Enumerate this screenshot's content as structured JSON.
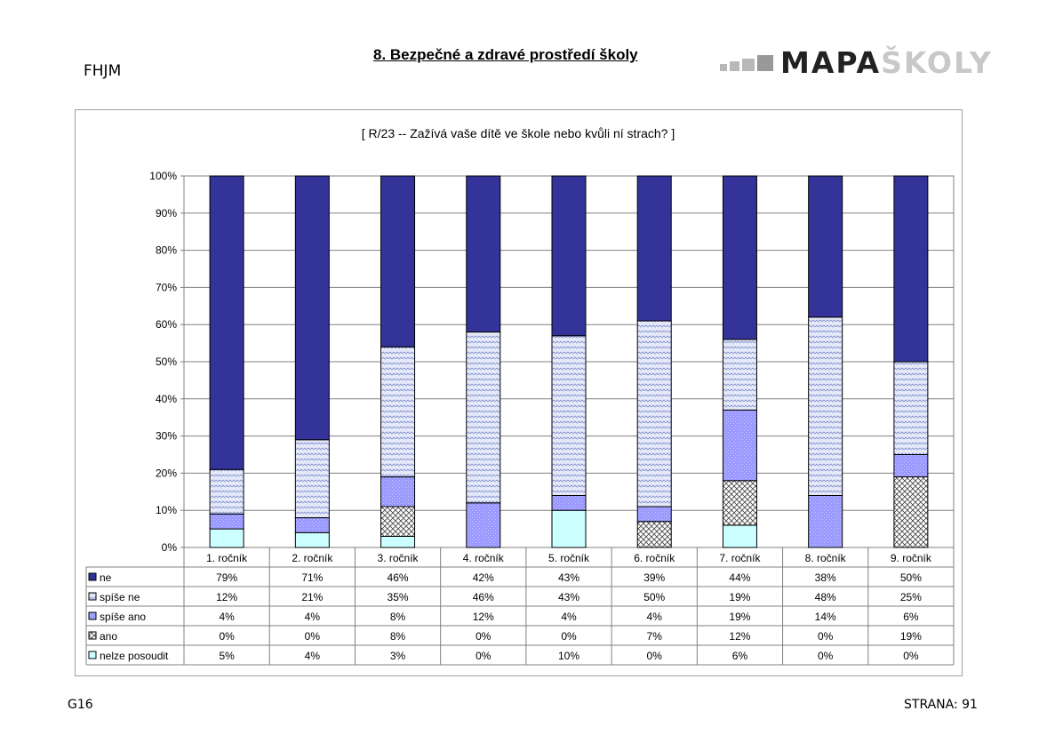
{
  "header": {
    "code": "FHJM",
    "title": "8. Bezpečné a zdravé prostředí školy",
    "logo_dark": "MAPA",
    "logo_light": "ŠKOLY"
  },
  "footer": {
    "left": "G16",
    "right": "STRANA: 91"
  },
  "colors": {
    "ne": "#333399",
    "spise_ne": "#ccd4f0",
    "spise_ano": "#9999ff",
    "ano": "#ffffff",
    "nelze_posoudit": "#ccffff"
  },
  "chart_data": {
    "type": "bar",
    "stacked": true,
    "percent": true,
    "title": "[ R/23 -- Zažívá vaše dítě ve škole nebo kvůli ní strach? ]",
    "categories": [
      "1. ročník",
      "2. ročník",
      "3. ročník",
      "4. ročník",
      "5. ročník",
      "6. ročník",
      "7. ročník",
      "8. ročník",
      "9. ročník"
    ],
    "y_ticks": [
      "0%",
      "10%",
      "20%",
      "30%",
      "40%",
      "50%",
      "60%",
      "70%",
      "80%",
      "90%",
      "100%"
    ],
    "ylim": [
      0,
      100
    ],
    "grid": true,
    "legend": "data-table",
    "series": [
      {
        "name": "ne",
        "values": [
          79,
          71,
          46,
          42,
          43,
          39,
          44,
          38,
          50
        ],
        "labels": [
          "79%",
          "71%",
          "46%",
          "42%",
          "43%",
          "39%",
          "44%",
          "38%",
          "50%"
        ]
      },
      {
        "name": "spíše ne",
        "values": [
          12,
          21,
          35,
          46,
          43,
          50,
          19,
          48,
          25
        ],
        "labels": [
          "12%",
          "21%",
          "35%",
          "46%",
          "43%",
          "50%",
          "19%",
          "48%",
          "25%"
        ]
      },
      {
        "name": "spíše ano",
        "values": [
          4,
          4,
          8,
          12,
          4,
          4,
          19,
          14,
          6
        ],
        "labels": [
          "4%",
          "4%",
          "8%",
          "12%",
          "4%",
          "4%",
          "19%",
          "14%",
          "6%"
        ]
      },
      {
        "name": "ano",
        "values": [
          0,
          0,
          8,
          0,
          0,
          7,
          12,
          0,
          19
        ],
        "labels": [
          "0%",
          "0%",
          "8%",
          "0%",
          "0%",
          "7%",
          "12%",
          "0%",
          "19%"
        ]
      },
      {
        "name": "nelze posoudit",
        "values": [
          5,
          4,
          3,
          0,
          10,
          0,
          6,
          0,
          0
        ],
        "labels": [
          "5%",
          "4%",
          "3%",
          "0%",
          "10%",
          "0%",
          "6%",
          "0%",
          "0%"
        ]
      }
    ]
  }
}
